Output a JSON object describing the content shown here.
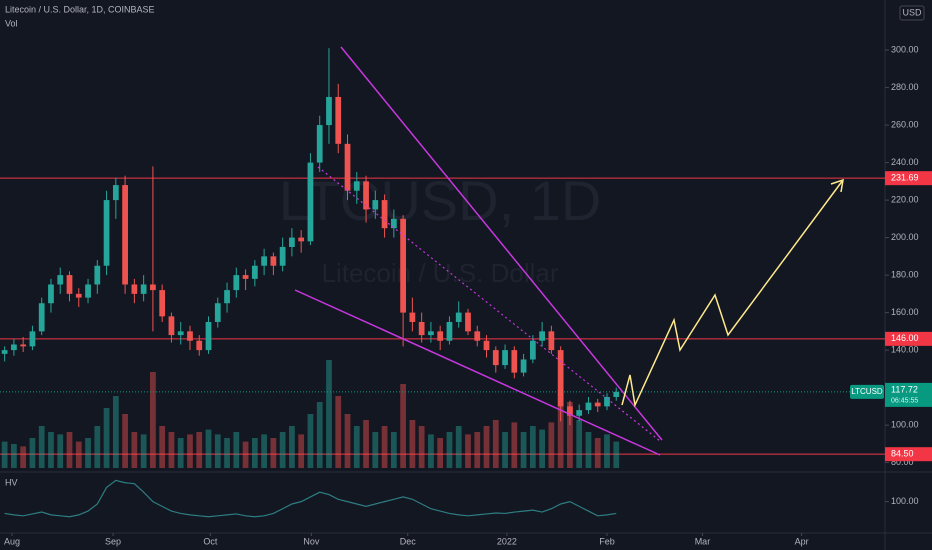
{
  "chart_data": {
    "type": "candlestick",
    "symbol": "Litecoin / U.S. Dollar, 1D, COINBASE",
    "vol_label": "Vol",
    "hv_label": "HV",
    "currency": "USD",
    "watermark": "LTCUSD, 1D",
    "watermark_sub": "Litecoin / U.S. Dollar",
    "xlim": [
      -0.5,
      95
    ],
    "xticks": [
      {
        "value": 0.8,
        "label": "Aug"
      },
      {
        "value": 11.7,
        "label": "Sep"
      },
      {
        "value": 22.2,
        "label": "Oct"
      },
      {
        "value": 33.1,
        "label": "Nov"
      },
      {
        "value": 43.5,
        "label": "Dec"
      },
      {
        "value": 54.2,
        "label": "2022"
      },
      {
        "value": 65.0,
        "label": "Feb"
      },
      {
        "value": 75.3,
        "label": "Mar"
      },
      {
        "value": 86.0,
        "label": "Apr"
      }
    ],
    "ylim": [
      75,
      326.7
    ],
    "yticks": [
      {
        "value": 80,
        "label": "80.00"
      },
      {
        "value": 100,
        "label": "100.00"
      },
      {
        "value": 140,
        "label": "140.00"
      },
      {
        "value": 160,
        "label": "160.00"
      },
      {
        "value": 180,
        "label": "180.00"
      },
      {
        "value": 200,
        "label": "200.00"
      },
      {
        "value": 220,
        "label": "220.00"
      },
      {
        "value": 240,
        "label": "240.00"
      },
      {
        "value": 260,
        "label": "260.00"
      },
      {
        "value": 280,
        "label": "280.00"
      },
      {
        "value": 300,
        "label": "300.00"
      }
    ],
    "grid": false,
    "up_color": "#26a69a",
    "down_color": "#ef5350",
    "candles": [
      [
        138,
        142,
        134,
        140
      ],
      [
        140,
        146,
        137,
        143
      ],
      [
        143,
        147,
        139,
        142
      ],
      [
        142,
        153,
        140,
        150
      ],
      [
        150,
        168,
        148,
        165
      ],
      [
        165,
        178,
        160,
        175
      ],
      [
        175,
        184,
        170,
        180
      ],
      [
        180,
        182,
        166,
        170
      ],
      [
        170,
        173,
        163,
        168
      ],
      [
        168,
        178,
        165,
        175
      ],
      [
        175,
        188,
        170,
        185
      ],
      [
        185,
        225,
        180,
        220
      ],
      [
        220,
        232,
        210,
        228
      ],
      [
        228,
        233,
        170,
        175
      ],
      [
        175,
        178,
        165,
        170
      ],
      [
        170,
        180,
        166,
        175
      ],
      [
        175,
        238,
        150,
        172
      ],
      [
        172,
        175,
        155,
        158
      ],
      [
        158,
        160,
        144,
        148
      ],
      [
        148,
        155,
        143,
        150
      ],
      [
        150,
        153,
        140,
        145
      ],
      [
        145,
        148,
        137,
        140
      ],
      [
        140,
        158,
        138,
        155
      ],
      [
        155,
        168,
        152,
        165
      ],
      [
        165,
        176,
        160,
        172
      ],
      [
        172,
        184,
        168,
        180
      ],
      [
        180,
        183,
        172,
        178
      ],
      [
        178,
        188,
        174,
        185
      ],
      [
        185,
        194,
        180,
        190
      ],
      [
        190,
        192,
        180,
        185
      ],
      [
        185,
        200,
        182,
        195
      ],
      [
        195,
        205,
        190,
        200
      ],
      [
        200,
        204,
        192,
        198
      ],
      [
        198,
        245,
        196,
        240
      ],
      [
        240,
        265,
        235,
        260
      ],
      [
        260,
        301,
        250,
        275
      ],
      [
        275,
        282,
        245,
        250
      ],
      [
        250,
        255,
        220,
        225
      ],
      [
        225,
        235,
        218,
        230
      ],
      [
        230,
        233,
        208,
        215
      ],
      [
        215,
        225,
        210,
        220
      ],
      [
        220,
        223,
        200,
        205
      ],
      [
        205,
        215,
        200,
        210
      ],
      [
        210,
        212,
        142,
        160
      ],
      [
        160,
        168,
        150,
        155
      ],
      [
        155,
        160,
        144,
        148
      ],
      [
        148,
        155,
        144,
        150
      ],
      [
        150,
        153,
        140,
        145
      ],
      [
        145,
        158,
        143,
        155
      ],
      [
        155,
        166,
        152,
        160
      ],
      [
        160,
        162,
        148,
        150
      ],
      [
        150,
        153,
        142,
        145
      ],
      [
        145,
        148,
        136,
        140
      ],
      [
        140,
        142,
        128,
        132
      ],
      [
        132,
        143,
        130,
        140
      ],
      [
        140,
        142,
        125,
        128
      ],
      [
        128,
        138,
        126,
        135
      ],
      [
        135,
        148,
        133,
        145
      ],
      [
        145,
        155,
        142,
        150
      ],
      [
        150,
        153,
        138,
        140
      ],
      [
        140,
        142,
        102,
        110
      ],
      [
        110,
        113,
        100,
        105
      ],
      [
        105,
        111,
        102,
        108
      ],
      [
        108,
        115,
        106,
        112
      ],
      [
        112,
        114,
        107,
        110
      ],
      [
        110,
        117,
        108,
        115
      ],
      [
        115,
        120,
        113,
        117.72
      ]
    ],
    "volume": [
      22,
      20,
      18,
      25,
      35,
      30,
      28,
      30,
      22,
      25,
      35,
      50,
      60,
      45,
      30,
      28,
      80,
      35,
      30,
      25,
      28,
      30,
      32,
      28,
      25,
      30,
      22,
      25,
      28,
      25,
      30,
      35,
      28,
      45,
      55,
      90,
      60,
      45,
      35,
      40,
      30,
      35,
      30,
      70,
      40,
      35,
      28,
      25,
      30,
      35,
      28,
      30,
      35,
      40,
      30,
      38,
      30,
      35,
      32,
      38,
      65,
      55,
      40,
      30,
      25,
      28,
      22
    ],
    "hv_ylim": [
      40,
      150
    ],
    "hv_yticks": [
      {
        "value": 100,
        "label": "100.00"
      }
    ],
    "hv": [
      75,
      72,
      70,
      74,
      78,
      72,
      70,
      68,
      72,
      80,
      95,
      130,
      145,
      140,
      138,
      120,
      100,
      90,
      80,
      75,
      72,
      70,
      68,
      70,
      72,
      74,
      70,
      68,
      70,
      75,
      85,
      95,
      100,
      110,
      120,
      115,
      105,
      100,
      95,
      90,
      95,
      100,
      105,
      110,
      105,
      95,
      85,
      80,
      75,
      72,
      70,
      72,
      74,
      76,
      75,
      78,
      80,
      82,
      78,
      85,
      95,
      100,
      90,
      80,
      70,
      72,
      75
    ],
    "hv_color": "#2e7d82",
    "levels": [
      {
        "value": 231.69,
        "label": "231.69"
      },
      {
        "value": 146,
        "label": "146.00"
      },
      {
        "value": 84.5,
        "label": "84.50"
      }
    ],
    "level_color": "#f23645",
    "last_price": {
      "name": "LTCUSD",
      "value": 117.72,
      "countdown": "06:45:55"
    },
    "last_color": "#089981"
  }
}
